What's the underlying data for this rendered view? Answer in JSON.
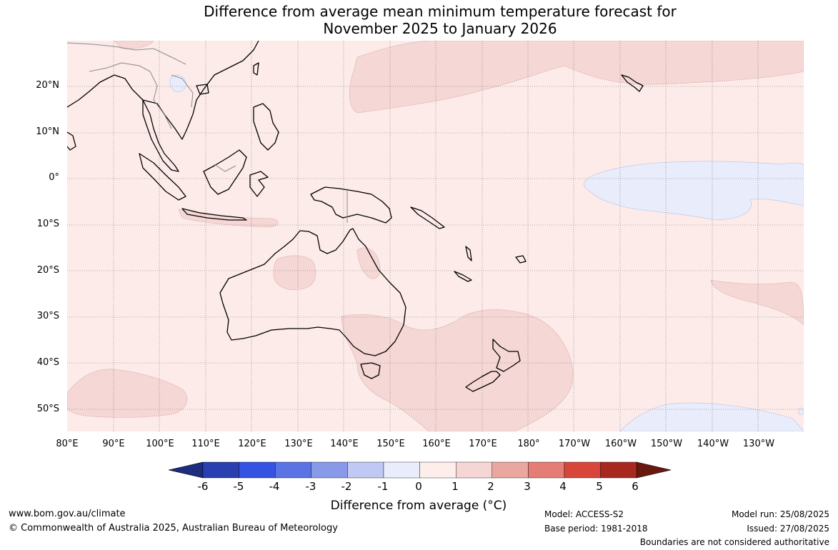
{
  "title": {
    "line1": "Difference from average mean minimum temperature forecast for",
    "line2": "November 2025 to January 2026"
  },
  "map": {
    "lat_labels": [
      "20°N",
      "10°N",
      "0°",
      "10°S",
      "20°S",
      "30°S",
      "40°S",
      "50°S"
    ],
    "lon_labels": [
      "80°E",
      "90°E",
      "100°E",
      "110°E",
      "120°E",
      "130°E",
      "140°E",
      "150°E",
      "160°E",
      "170°E",
      "180°",
      "170°W",
      "160°W",
      "150°W",
      "140°W",
      "130°W"
    ],
    "colors": {
      "background_0_to_1": "#fcebe9",
      "anomaly_1_to_2": "#f5d7d5",
      "anomaly_minus1_to_0": "#e8ecfb",
      "coastline": "#000000",
      "borders": "#8a8a8a",
      "gridline": "#666666"
    }
  },
  "colorbar": {
    "ticks": [
      "-6",
      "-5",
      "-4",
      "-3",
      "-2",
      "-1",
      "0",
      "1",
      "2",
      "3",
      "4",
      "5",
      "6"
    ],
    "colors": [
      "#1c2c7e",
      "#2a40b0",
      "#3552e0",
      "#5b74e4",
      "#8899e8",
      "#c0c8f4",
      "#e9ecfb",
      "#fdeeec",
      "#f5d6d4",
      "#eaa7a0",
      "#e47d74",
      "#d8463a",
      "#a7281f",
      "#6a1710"
    ],
    "label": "Difference from average (°C)"
  },
  "footer": {
    "website": "www.bom.gov.au/climate",
    "copyright": "© Commonwealth of Australia 2025, Australian Bureau of Meteorology",
    "model": "Model: ACCESS-S2",
    "base_period": "Base period: 1981-2018",
    "model_run": "Model run: 25/08/2025",
    "issued": "Issued: 27/08/2025",
    "disclaimer": "Boundaries are not considered authoritative"
  }
}
